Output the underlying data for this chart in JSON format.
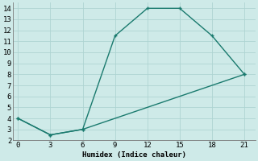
{
  "line1_x": [
    0,
    3,
    6,
    9,
    12,
    15,
    18,
    21
  ],
  "line1_y": [
    4,
    2.5,
    3,
    11.5,
    14,
    14,
    11.5,
    8
  ],
  "line2_x": [
    0,
    3,
    6,
    21
  ],
  "line2_y": [
    4,
    2.5,
    3,
    8
  ],
  "line_color": "#1a7a6e",
  "bg_color": "#ceeae8",
  "grid_color": "#aed4d2",
  "xlabel": "Humidex (Indice chaleur)",
  "xlim": [
    -0.5,
    22
  ],
  "ylim": [
    2,
    14.5
  ],
  "xticks": [
    0,
    3,
    6,
    9,
    12,
    15,
    18,
    21
  ],
  "yticks": [
    2,
    3,
    4,
    5,
    6,
    7,
    8,
    9,
    10,
    11,
    12,
    13,
    14
  ],
  "font_family": "monospace",
  "linewidth": 1.0,
  "markersize": 3.5
}
